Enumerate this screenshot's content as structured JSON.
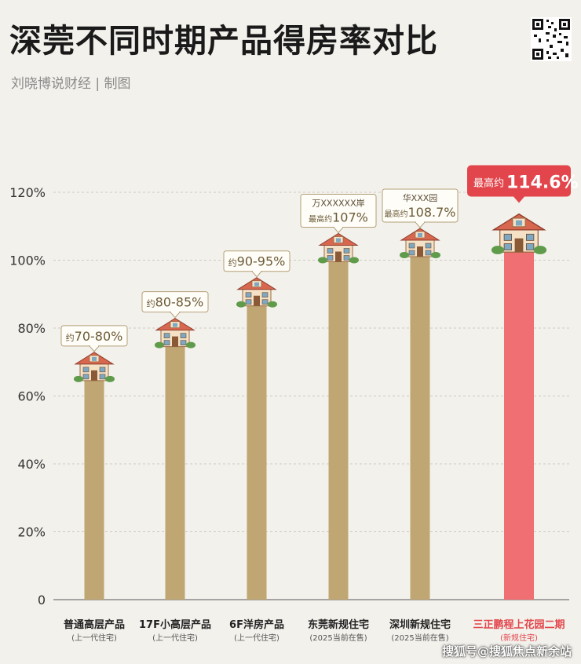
{
  "header": {
    "title": "深莞不同时期产品得房率对比",
    "subtitle": "刘晓博说财经 | 制图"
  },
  "watermark": "搜狐号@搜狐焦点新余站",
  "icons": {
    "qr": "qr-code-icon",
    "house": "house-icon"
  },
  "colors": {
    "bar": "#bfa673",
    "highlight_bar": "#ef6f73",
    "highlight_text": "#e2464c",
    "callout_border": "#b3a079"
  },
  "chart_data": {
    "type": "bar",
    "title": "",
    "xlabel": "",
    "ylabel": "",
    "ylim": [
      0,
      120
    ],
    "yticks": [
      0,
      20,
      40,
      60,
      80,
      100,
      120
    ],
    "ytick_labels": [
      "0",
      "20%",
      "40%",
      "60%",
      "80%",
      "100%",
      "120%"
    ],
    "grid": true,
    "categories": [
      {
        "label": "普通高层产品",
        "sublabel": "(上一代住宅)"
      },
      {
        "label": "17F小高层产品",
        "sublabel": "(上一代住宅)"
      },
      {
        "label": "6F洋房产品",
        "sublabel": "(上一代住宅)"
      },
      {
        "label": "东莞新规住宅",
        "sublabel": "(2025当前在售)"
      },
      {
        "label": "深圳新规住宅",
        "sublabel": "(2025当前在售)"
      },
      {
        "label": "三正鹏程上花园二期",
        "sublabel": "(新规住宅)"
      }
    ],
    "values": [
      65,
      75,
      87,
      100,
      101.5,
      103
    ],
    "callouts": [
      {
        "top": "",
        "prefix": "约",
        "value": "70-80%"
      },
      {
        "top": "",
        "prefix": "约",
        "value": "80-85%"
      },
      {
        "top": "",
        "prefix": "约",
        "value": "90-95%"
      },
      {
        "top": "万XXXXXX岸",
        "prefix": "最高约",
        "value": "107%"
      },
      {
        "top": "华XXX园",
        "prefix": "最高约",
        "value": "108.7%"
      },
      {
        "top": "",
        "prefix": "最高约",
        "value": "114.6%"
      }
    ],
    "highlight_index": 5
  }
}
